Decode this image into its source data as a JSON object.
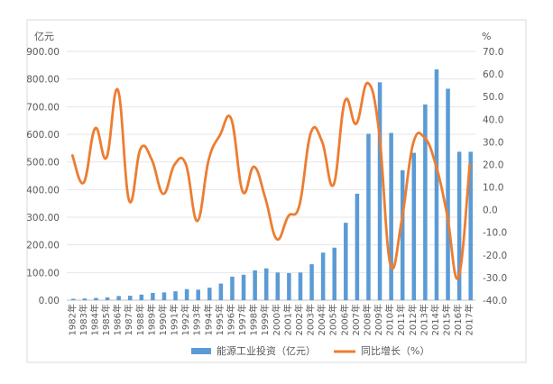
{
  "chart_data": {
    "type": "bar",
    "title": "",
    "left_axis_unit": "亿元",
    "right_axis_unit": "%",
    "categories": [
      "1982年",
      "1983年",
      "1984年",
      "1985年",
      "1986年",
      "1987年",
      "1988年",
      "1989年",
      "1990年",
      "1991年",
      "1992年",
      "1993年",
      "1994年",
      "1995年",
      "1996年",
      "1997年",
      "1998年",
      "1999年",
      "2000年",
      "2001年",
      "2002年",
      "2003年",
      "2004年",
      "2005年",
      "2006年",
      "2007年",
      "2008年",
      "2009年",
      "2010年",
      "2011年",
      "2012年",
      "2013年",
      "2014年",
      "2015年",
      "2016年",
      "2017年"
    ],
    "ylim_left": [
      0,
      900
    ],
    "yticks_left": [
      "0.00",
      "100.00",
      "200.00",
      "300.00",
      "400.00",
      "500.00",
      "600.00",
      "700.00",
      "800.00",
      "900.00"
    ],
    "ylim_right": [
      -40,
      70
    ],
    "yticks_right": [
      "-40.0",
      "-30.0",
      "-20.0",
      "-10.0",
      "0.0",
      "10.0",
      "20.0",
      "30.0",
      "40.0",
      "50.0",
      "60.0",
      "70.0"
    ],
    "series": [
      {
        "name": "能源工业投资（亿元）",
        "kind": "bar",
        "axis": "left",
        "color": "#5B9BD5",
        "values": [
          5,
          6,
          8,
          10,
          15,
          16,
          20,
          26,
          28,
          32,
          40,
          38,
          45,
          60,
          85,
          92,
          108,
          115,
          100,
          98,
          100,
          130,
          172,
          190,
          280,
          385,
          602,
          788,
          605,
          470,
          533,
          708,
          835,
          765,
          537,
          537
        ]
      },
      {
        "name": "同比增长（%）",
        "kind": "line",
        "axis": "right",
        "color": "#ED7D31",
        "values": [
          24,
          12,
          36,
          23,
          53,
          4,
          27,
          22,
          7,
          20,
          20,
          -5,
          22,
          33,
          40,
          8,
          19,
          5,
          -13,
          -3,
          2,
          34,
          30,
          11,
          48,
          38,
          56,
          35,
          -24,
          -5,
          29,
          32,
          20,
          -2,
          -30,
          20
        ]
      }
    ],
    "legend_position": "bottom",
    "grid": true
  }
}
